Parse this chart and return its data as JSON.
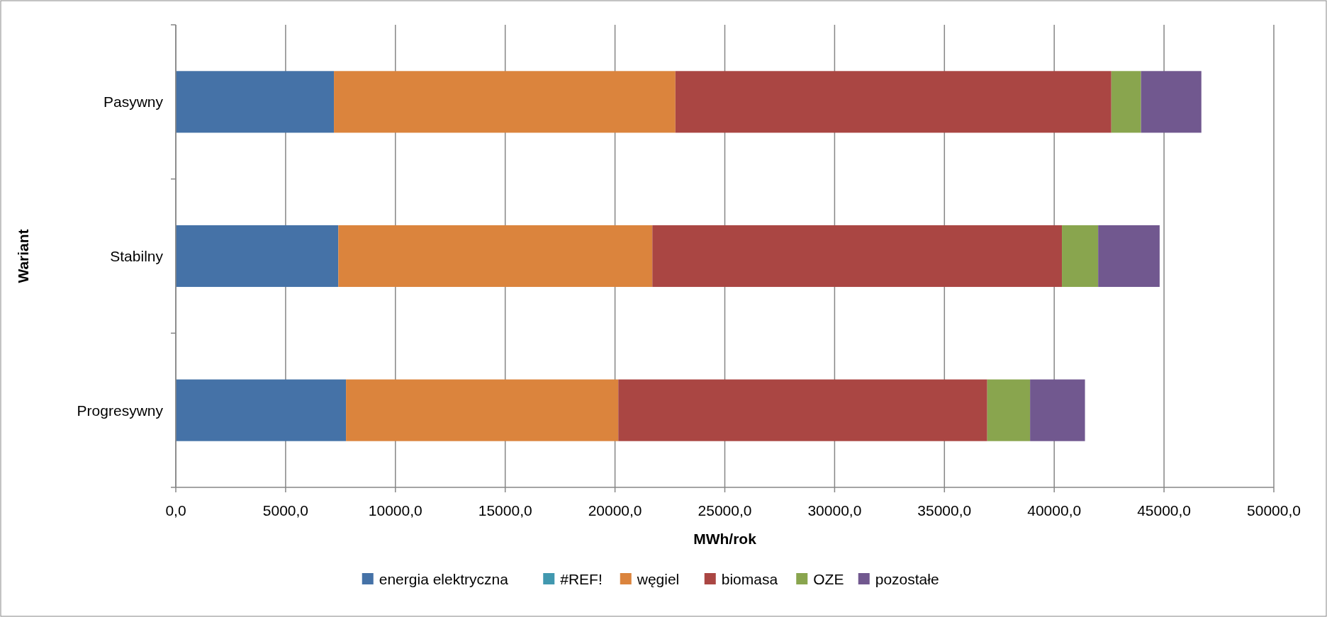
{
  "chart_data": {
    "type": "bar",
    "orientation": "horizontal",
    "stacked": true,
    "xlabel": "MWh/rok",
    "ylabel": "Wariant",
    "categories": [
      "Pasywny",
      "Stabilny",
      "Progresywny"
    ],
    "series": [
      {
        "name": "energia elektryczna",
        "color": "#4572a7",
        "values": [
          7200,
          7400,
          7750
        ]
      },
      {
        "name": "#REF!",
        "color": "#4198af",
        "values": [
          0,
          0,
          0
        ]
      },
      {
        "name": "węgiel",
        "color": "#db843d",
        "values": [
          15550,
          14300,
          12400
        ]
      },
      {
        "name": "biomasa",
        "color": "#aa4643",
        "values": [
          19850,
          18650,
          16800
        ]
      },
      {
        "name": "OZE",
        "color": "#89a54e",
        "values": [
          1350,
          1650,
          1950
        ]
      },
      {
        "name": "pozostałe",
        "color": "#71588f",
        "values": [
          2750,
          2800,
          2500
        ]
      }
    ],
    "xlim": [
      0,
      50000
    ],
    "xticks": [
      {
        "value": 0,
        "label": "0,0"
      },
      {
        "value": 5000,
        "label": "5000,0"
      },
      {
        "value": 10000,
        "label": "10000,0"
      },
      {
        "value": 15000,
        "label": "15000,0"
      },
      {
        "value": 20000,
        "label": "20000,0"
      },
      {
        "value": 25000,
        "label": "25000,0"
      },
      {
        "value": 30000,
        "label": "30000,0"
      },
      {
        "value": 35000,
        "label": "35000,0"
      },
      {
        "value": 40000,
        "label": "40000,0"
      },
      {
        "value": 45000,
        "label": "45000,0"
      },
      {
        "value": 50000,
        "label": "50000,0"
      }
    ],
    "grid": "x",
    "legend": "bottom"
  }
}
